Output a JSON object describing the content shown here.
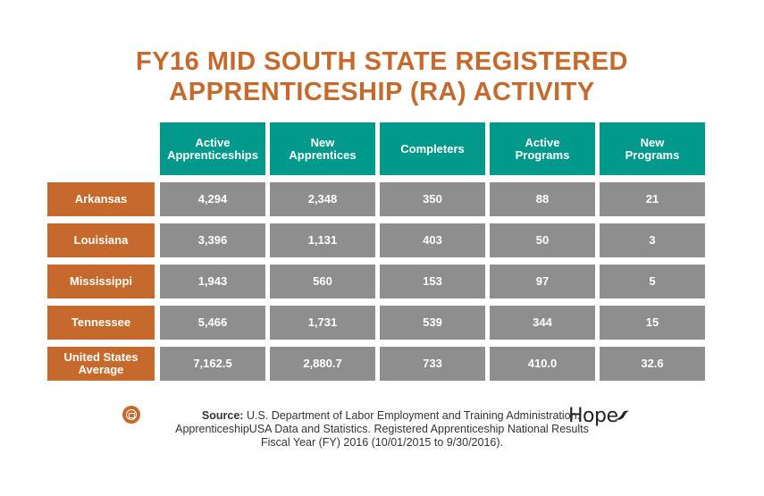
{
  "title": {
    "line1": "FY16 MID SOUTH STATE REGISTERED",
    "line2": "APPRENTICESHIP (RA) ACTIVITY"
  },
  "chart_data": {
    "type": "table",
    "columns": [
      "Active Apprenticeships",
      "New Apprentices",
      "Completers",
      "Active Programs",
      "New Programs"
    ],
    "rows": [
      {
        "label": "Arkansas",
        "values": [
          "4,294",
          "2,348",
          "350",
          "88",
          "21"
        ]
      },
      {
        "label": "Louisiana",
        "values": [
          "3,396",
          "1,131",
          "403",
          "50",
          "3"
        ]
      },
      {
        "label": "Mississippi",
        "values": [
          "1,943",
          "560",
          "153",
          "97",
          "5"
        ]
      },
      {
        "label": "Tennessee",
        "values": [
          "5,466",
          "1,731",
          "539",
          "344",
          "15"
        ]
      },
      {
        "label": "United States Average",
        "values": [
          "7,162.5",
          "2,880.7",
          "733",
          "410.0",
          "32.6"
        ]
      }
    ]
  },
  "source": {
    "label": "Source:",
    "line1": "U.S. Department of Labor Employment and Training Administration.",
    "line2": "ApprenticeshipUSA Data and Statistics. Registered Apprenticeship National Results",
    "line3": "Fiscal Year (FY) 2016 (10/01/2015 to 9/30/2016)."
  },
  "logo": {
    "text": "Hope"
  },
  "colors": {
    "title": "#c56a2c",
    "header": "#00998c",
    "row_label": "#c56a2c",
    "cell": "#8e8e8e"
  },
  "icons": {
    "source": "document-icon",
    "logo": "hope-logo-icon"
  }
}
